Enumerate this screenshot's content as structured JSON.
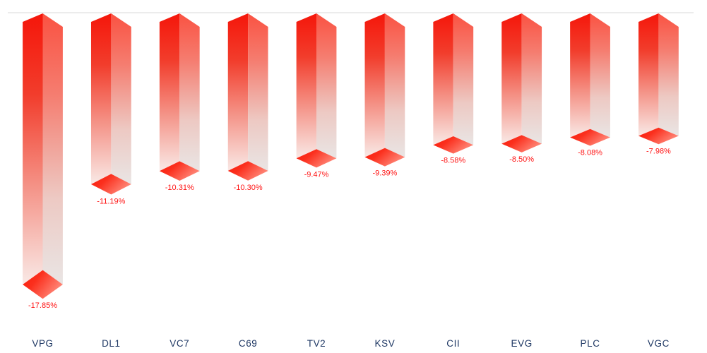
{
  "chart_data": {
    "type": "bar",
    "subtype": "3d-prism-hanging-negative",
    "title": "",
    "xlabel": "",
    "ylabel": "",
    "grid": false,
    "legend": null,
    "ylim": [
      -18.5,
      0
    ],
    "categories": [
      "VPG",
      "DL1",
      "VC7",
      "C69",
      "TV2",
      "KSV",
      "CII",
      "EVG",
      "PLC",
      "VGC"
    ],
    "values": [
      -17.85,
      -11.19,
      -10.31,
      -10.3,
      -9.47,
      -9.39,
      -8.58,
      -8.5,
      -8.08,
      -7.98
    ],
    "value_labels": [
      "-17.85%",
      "-11.19%",
      "-10.31%",
      "-10.30%",
      "-9.47%",
      "-9.39%",
      "-8.58%",
      "-8.50%",
      "-8.08%",
      "-7.98%"
    ],
    "colors": {
      "background": "#ffffff",
      "axis_line": "#d9d9d9",
      "bar_left_top": "#f5160a",
      "bar_left_mid": "#f23d2c",
      "bar_left_fade": "#f48e82",
      "bar_left_bottom": "#f9e9e6",
      "bar_right_top": "#fa5242",
      "bar_right_mid": "#f57d70",
      "bar_right_fade": "#edc9c3",
      "bar_right_bottom": "#e9e5e4",
      "cap_dark": "#fa1a09",
      "cap_mid": "#fb2f1d",
      "cap_light": "#ff8a7b",
      "value_label": "#ff1414",
      "category_label": "#1f3864"
    }
  }
}
